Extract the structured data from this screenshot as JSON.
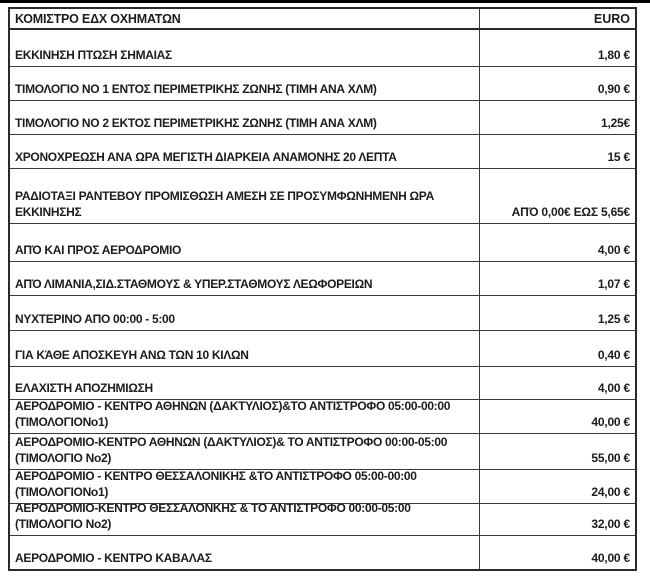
{
  "table": {
    "header": {
      "title": "ΚΟΜΙΣΤΡΟ ΕΔΧ ΟΧΗΜΑΤΩΝ",
      "currency_label": "EURO"
    },
    "rows": [
      {
        "label": "ΕΚΚΙΝΗΣΗ ΠΤΩΣΗ ΣΗΜΑΙΑΣ",
        "value": "1,80 €"
      },
      {
        "label": "ΤΙΜΟΛΟΓΙΟ ΝΟ 1 ΕΝΤΟΣ ΠΕΡΙΜΕΤΡΙΚΗΣ ΖΩΝΗΣ (ΤΙΜΗ ΑΝΑ ΧΛΜ)",
        "value": "0,90 €"
      },
      {
        "label": "ΤΙΜΟΛΟΓΙΟ ΝΟ 2 ΕΚΤΟΣ  ΠΕΡΙΜΕΤΡΙΚΗΣ ΖΩΝΗΣ (ΤΙΜΗ ΑΝΑ ΧΛΜ)",
        "value": "1,25€"
      },
      {
        "label": "ΧΡΟΝΟΧΡΕΩΣΗ ΑΝΑ ΩΡΑ ΜΕΓΙΣΤΗ  ΔΙΑΡΚΕΙΑ ΑΝΑΜΟΝΗΣ 20 ΛΕΠΤΑ",
        "value": "15 €"
      },
      {
        "label": "ΡΑΔΙΟΤΑΞΙ ΡΑΝΤΕΒΟΥ  ΠΡΟΜΙΣΘΩΣΗ ΑΜΕΣΗ ΣΕ ΠΡΟΣΥΜΦΩΝΗΜΕΝΗ ΩΡΑ\nΕΚΚΙΝΗΣΗΣ",
        "value": "ΑΠΌ 0,00€ ΕΩΣ 5,65€"
      },
      {
        "label": "ΑΠΌ ΚΑΙ ΠΡΟΣ ΑΕΡΟΔΡΟΜΙΟ",
        "value": "4,00 €"
      },
      {
        "label": "ΑΠΌ ΛΙΜΑΝΙΑ,ΣΙΔ.ΣΤΑΘΜΟΥΣ & ΥΠΕΡ.ΣΤΑΘΜΟΥΣ ΛΕΩΦΟΡΕΙΩΝ",
        "value": "1,07 €"
      },
      {
        "label": "ΝΥΧΤΕΡΙΝΟ ΑΠΟ  00:00  - 5:00",
        "value": "1,25 €"
      },
      {
        "label": "ΓΙΑ ΚΆΘΕ ΑΠΟΣΚΕΥΗ ΑΝΩ ΤΩΝ 10 ΚΙΛΩΝ",
        "value": "0,40 €"
      },
      {
        "label": "ΕΛΑΧΙΣΤΗ ΑΠΟΖΗΜΙΩΣΗ",
        "value": "4,00 €"
      },
      {
        "label": "ΑΕΡΟΔΡΟΜΙΟ - ΚΕΝΤΡΟ ΑΘΗΝΩΝ (ΔΑΚΤΥΛΙΟΣ)&ΤΟ ΑΝΤΙΣΤΡΟΦΟ 05:00-00:00\n(ΤΙΜΟΛΟΓΙΟΝο1)",
        "value": "40,00 €"
      },
      {
        "label": "ΑΕΡΟΔΡΟΜΙΟ-ΚΕΝΤΡΟ ΑΘΗΝΩΝ (ΔΑΚΤΥΛΙΟΣ)& ΤΟ ΑΝΤΙΣΤΡΟΦΟ 00:00-05:00\n(ΤΙΜΟΛΟΓΙΟ Νο2)",
        "value": "55,00 €"
      },
      {
        "label": "ΑΕΡΟΔΡΟΜΙΟ - ΚΕΝΤΡΟ ΘΕΣΣΑΛΟΝΙΚΗΣ  &ΤΟ ΑΝΤΙΣΤΡΟΦΟ 05:00-00:00\n(ΤΙΜΟΛΟΓΙΟΝο1)",
        "value": "24,00 €"
      },
      {
        "label": "ΑΕΡΟΔΡΟΜΙΟ-ΚΕΝΤΡΟ ΘΕΣΣΑΛΟΝΚΗΣ & ΤΟ ΑΝΤΙΣΤΡΟΦΟ 00:00-05:00\n(ΤΙΜΟΛΟΓΙΟ Νο2)",
        "value": "32,00 €"
      },
      {
        "label": "ΑΕΡΟΔΡΟΜΙΟ - ΚΕΝΤΡΟ ΚΑΒΑΛΑΣ",
        "value": "40,00 €"
      }
    ],
    "colors": {
      "outer_border": "#2b2b2b",
      "inner_border": "#3a3a3a",
      "text": "#1c1c1c",
      "background": "#ffffff",
      "top_bar": "#000000"
    }
  }
}
